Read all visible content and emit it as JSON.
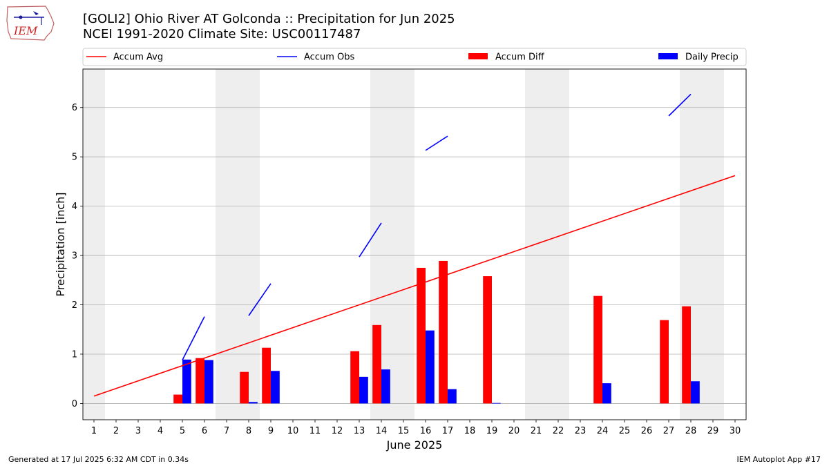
{
  "header": {
    "title_line1": "[GOLI2] Ohio River  AT Golconda :: Precipitation for Jun 2025",
    "title_line2": "NCEI 1991-2020 Climate Site: USC00117487",
    "logo_text": "IEM"
  },
  "footer": {
    "left": "Generated at 17 Jul 2025 6:32 AM CDT in 0.34s",
    "right": "IEM Autoplot App #17"
  },
  "colors": {
    "avg": "#ff0000",
    "obs": "#0000ff",
    "diff": "#ff0000",
    "daily": "#0000ff",
    "weekend": "#eeeeee",
    "grid": "#b0b0b0"
  },
  "chart_data": {
    "type": "bar",
    "xlabel": "June 2025",
    "ylabel": "Precipitation [inch]",
    "ylim": [
      -0.33,
      6.78
    ],
    "yticks": [
      0,
      1,
      2,
      3,
      4,
      5,
      6
    ],
    "days": [
      1,
      2,
      3,
      4,
      5,
      6,
      7,
      8,
      9,
      10,
      11,
      12,
      13,
      14,
      15,
      16,
      17,
      18,
      19,
      20,
      21,
      22,
      23,
      24,
      25,
      26,
      27,
      28,
      29,
      30
    ],
    "weekend_days": [
      1,
      7,
      8,
      14,
      15,
      21,
      22,
      28,
      29
    ],
    "grid": "horizontal",
    "legend": {
      "placement": "top",
      "entries": [
        "Accum Avg",
        "Accum Obs",
        "Accum Diff",
        "Daily Precip"
      ]
    },
    "accum_avg": {
      "name": "Accum Avg",
      "start": [
        1,
        0.15
      ],
      "end": [
        30,
        4.62
      ]
    },
    "accum_obs": {
      "name": "Accum Obs",
      "segments": [
        [
          [
            5,
            0.88
          ],
          [
            6,
            1.76
          ]
        ],
        [
          [
            8,
            1.78
          ],
          [
            9,
            2.43
          ]
        ],
        [
          [
            13,
            2.97
          ],
          [
            14,
            3.66
          ]
        ],
        [
          [
            16,
            5.13
          ],
          [
            17,
            5.42
          ]
        ],
        [
          [
            27,
            5.83
          ],
          [
            28,
            6.27
          ]
        ]
      ]
    },
    "accum_diff": {
      "name": "Accum Diff",
      "values": [
        {
          "day": 5,
          "value": 0.18
        },
        {
          "day": 6,
          "value": 0.92
        },
        {
          "day": 8,
          "value": 0.64
        },
        {
          "day": 9,
          "value": 1.13
        },
        {
          "day": 13,
          "value": 1.06
        },
        {
          "day": 14,
          "value": 1.59
        },
        {
          "day": 16,
          "value": 2.75
        },
        {
          "day": 17,
          "value": 2.89
        },
        {
          "day": 19,
          "value": 2.58
        },
        {
          "day": 24,
          "value": 2.18
        },
        {
          "day": 27,
          "value": 1.69
        },
        {
          "day": 28,
          "value": 1.97
        }
      ]
    },
    "daily_precip": {
      "name": "Daily Precip",
      "values": [
        {
          "day": 5,
          "value": 0.89
        },
        {
          "day": 6,
          "value": 0.88
        },
        {
          "day": 8,
          "value": 0.03
        },
        {
          "day": 9,
          "value": 0.66
        },
        {
          "day": 13,
          "value": 0.54
        },
        {
          "day": 14,
          "value": 0.69
        },
        {
          "day": 16,
          "value": 1.48
        },
        {
          "day": 17,
          "value": 0.29
        },
        {
          "day": 19,
          "value": 0.01
        },
        {
          "day": 24,
          "value": 0.41
        },
        {
          "day": 28,
          "value": 0.45
        }
      ]
    }
  }
}
